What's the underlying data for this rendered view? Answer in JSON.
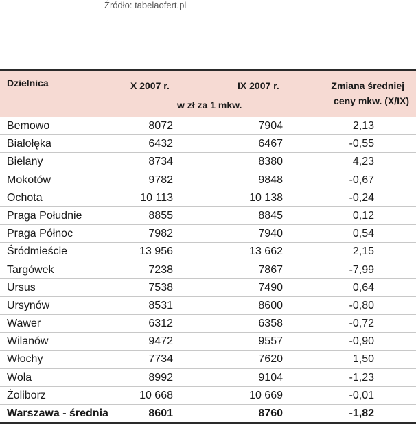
{
  "source": "Źródło: tabelaofert.pl",
  "table": {
    "header": {
      "district": "Dzielnica",
      "col1": "X 2007 r.",
      "col2": "IX 2007 r.",
      "unit": "w zł za 1 mkw.",
      "change_line1": "Zmiana średniej",
      "change_line2": "ceny mkw. (X/IX)"
    },
    "rows": [
      [
        "Bemowo",
        "8072",
        "7904",
        "2,13"
      ],
      [
        "Białołęka",
        "6432",
        "6467",
        "-0,55"
      ],
      [
        "Bielany",
        "8734",
        "8380",
        "4,23"
      ],
      [
        "Mokotów",
        "9782",
        "9848",
        "-0,67"
      ],
      [
        "Ochota",
        "10 113",
        "10 138",
        "-0,24"
      ],
      [
        "Praga Południe",
        "8855",
        "8845",
        "0,12"
      ],
      [
        "Praga Północ",
        "7982",
        "7940",
        "0,54"
      ],
      [
        "Śródmieście",
        "13 956",
        "13 662",
        "2,15"
      ],
      [
        "Targówek",
        "7238",
        "7867",
        "-7,99"
      ],
      [
        "Ursus",
        "7538",
        "7490",
        "0,64"
      ],
      [
        "Ursynów",
        "8531",
        "8600",
        "-0,80"
      ],
      [
        "Wawer",
        "6312",
        "6358",
        "-0,72"
      ],
      [
        "Wilanów",
        "9472",
        "9557",
        "-0,90"
      ],
      [
        "Włochy",
        "7734",
        "7620",
        "1,50"
      ],
      [
        "Wola",
        "8992",
        "9104",
        "-1,23"
      ],
      [
        "Żoliborz",
        "10 668",
        "10 669",
        "-0,01"
      ],
      [
        "Warszawa - średnia",
        "8601",
        "8760",
        "-1,82"
      ]
    ]
  }
}
